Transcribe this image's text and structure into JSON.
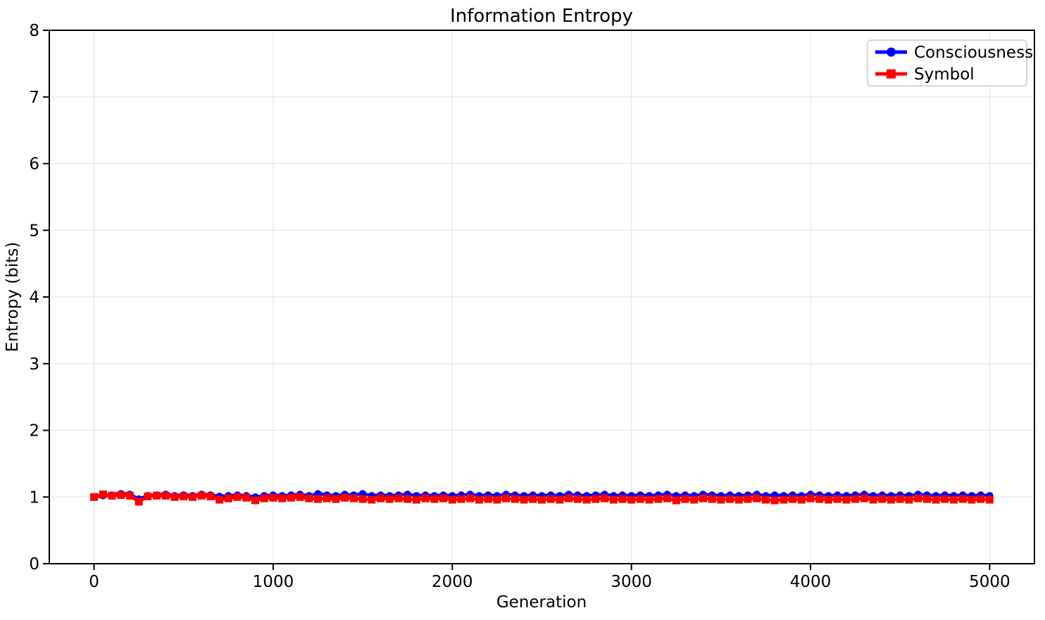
{
  "figure": {
    "background": "#ffffff"
  },
  "colors": {
    "grid": "#e7e7e7",
    "spine": "#000000",
    "legend_border": "#cccccc",
    "legend_background": "#ffffff",
    "consciousness": "#0000ff",
    "symbol": "#ff0000"
  },
  "chart_data": {
    "type": "line",
    "title": "Information Entropy",
    "xlabel": "Generation",
    "ylabel": "Entropy (bits)",
    "xlim": [
      -250,
      5250
    ],
    "ylim": [
      0,
      8
    ],
    "xticks": [
      0,
      1000,
      2000,
      3000,
      4000,
      5000
    ],
    "yticks": [
      0,
      1,
      2,
      3,
      4,
      5,
      6,
      7,
      8
    ],
    "grid": true,
    "legend_position": "upper right",
    "x": [
      0,
      50,
      100,
      150,
      200,
      250,
      300,
      350,
      400,
      450,
      500,
      550,
      600,
      650,
      700,
      750,
      800,
      850,
      900,
      950,
      1000,
      1050,
      1100,
      1150,
      1200,
      1250,
      1300,
      1350,
      1400,
      1450,
      1500,
      1550,
      1600,
      1650,
      1700,
      1750,
      1800,
      1850,
      1900,
      1950,
      2000,
      2050,
      2100,
      2150,
      2200,
      2250,
      2300,
      2350,
      2400,
      2450,
      2500,
      2550,
      2600,
      2650,
      2700,
      2750,
      2800,
      2850,
      2900,
      2950,
      3000,
      3050,
      3100,
      3150,
      3200,
      3250,
      3300,
      3350,
      3400,
      3450,
      3500,
      3550,
      3600,
      3650,
      3700,
      3750,
      3800,
      3850,
      3900,
      3950,
      4000,
      4050,
      4100,
      4150,
      4200,
      4250,
      4300,
      4350,
      4400,
      4450,
      4500,
      4550,
      4600,
      4650,
      4700,
      4750,
      4800,
      4850,
      4900,
      4950,
      5000
    ],
    "series": [
      {
        "name": "Consciousness",
        "color": "#0000ff",
        "marker": "circle",
        "values": [
          1.0,
          1.02,
          1.03,
          1.05,
          1.04,
          0.97,
          1.02,
          1.03,
          1.04,
          1.02,
          1.03,
          1.02,
          1.04,
          1.03,
          1.01,
          1.02,
          1.03,
          1.02,
          1.0,
          1.02,
          1.03,
          1.02,
          1.03,
          1.04,
          1.02,
          1.05,
          1.03,
          1.02,
          1.04,
          1.03,
          1.05,
          1.02,
          1.03,
          1.02,
          1.03,
          1.04,
          1.02,
          1.03,
          1.02,
          1.03,
          1.02,
          1.03,
          1.04,
          1.02,
          1.03,
          1.02,
          1.04,
          1.03,
          1.02,
          1.03,
          1.02,
          1.03,
          1.02,
          1.04,
          1.03,
          1.02,
          1.03,
          1.04,
          1.02,
          1.03,
          1.02,
          1.03,
          1.02,
          1.03,
          1.04,
          1.02,
          1.03,
          1.02,
          1.04,
          1.03,
          1.02,
          1.03,
          1.02,
          1.03,
          1.04,
          1.02,
          1.03,
          1.02,
          1.03,
          1.02,
          1.04,
          1.03,
          1.02,
          1.03,
          1.02,
          1.03,
          1.04,
          1.02,
          1.03,
          1.02,
          1.03,
          1.02,
          1.04,
          1.03,
          1.02,
          1.03,
          1.02,
          1.03,
          1.02,
          1.03,
          1.02
        ]
      },
      {
        "name": "Symbol",
        "color": "#ff0000",
        "marker": "square",
        "values": [
          1.0,
          1.04,
          1.02,
          1.03,
          1.02,
          0.93,
          1.01,
          1.02,
          1.02,
          1.0,
          1.01,
          1.0,
          1.02,
          1.01,
          0.96,
          0.98,
          1.0,
          0.99,
          0.95,
          0.98,
          0.99,
          0.98,
          0.99,
          1.0,
          0.98,
          0.97,
          0.98,
          0.97,
          0.99,
          0.98,
          0.97,
          0.96,
          0.98,
          0.97,
          0.98,
          0.97,
          0.96,
          0.98,
          0.97,
          0.98,
          0.96,
          0.97,
          0.98,
          0.96,
          0.97,
          0.96,
          0.98,
          0.97,
          0.96,
          0.97,
          0.96,
          0.97,
          0.96,
          0.98,
          0.97,
          0.96,
          0.97,
          0.98,
          0.96,
          0.97,
          0.96,
          0.97,
          0.96,
          0.97,
          0.98,
          0.95,
          0.97,
          0.96,
          0.98,
          0.97,
          0.96,
          0.97,
          0.96,
          0.97,
          0.98,
          0.96,
          0.95,
          0.96,
          0.97,
          0.96,
          0.98,
          0.97,
          0.96,
          0.97,
          0.96,
          0.97,
          0.98,
          0.96,
          0.97,
          0.96,
          0.97,
          0.96,
          0.98,
          0.97,
          0.96,
          0.97,
          0.96,
          0.97,
          0.96,
          0.97,
          0.96
        ]
      }
    ]
  }
}
